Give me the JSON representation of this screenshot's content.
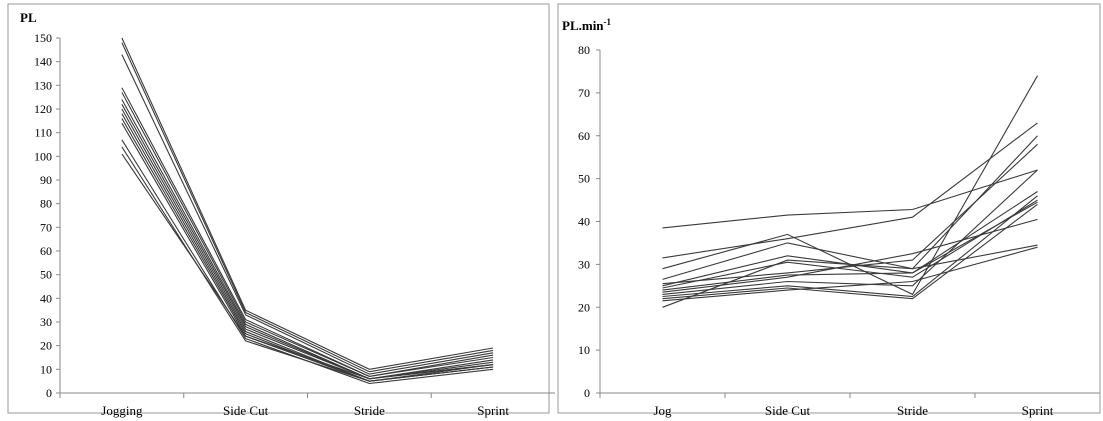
{
  "chart_data": [
    {
      "type": "line",
      "ylabel": "PL",
      "categories": [
        "Jogging",
        "Side Cut",
        "Stride",
        "Sprint"
      ],
      "ylim": [
        0,
        150
      ],
      "yticks": [
        0,
        10,
        20,
        30,
        40,
        50,
        60,
        70,
        80,
        90,
        100,
        110,
        120,
        130,
        140,
        150
      ],
      "grid": false,
      "series": [
        {
          "values": [
            150,
            35,
            10,
            19
          ]
        },
        {
          "values": [
            148,
            34,
            9,
            18
          ]
        },
        {
          "values": [
            143,
            33,
            8,
            17
          ]
        },
        {
          "values": [
            129,
            31,
            7,
            16
          ]
        },
        {
          "values": [
            127,
            30,
            7,
            15
          ]
        },
        {
          "values": [
            124,
            29,
            6,
            14
          ]
        },
        {
          "values": [
            122,
            28,
            6,
            13
          ]
        },
        {
          "values": [
            120,
            27,
            6,
            12
          ]
        },
        {
          "values": [
            118,
            26,
            5,
            12
          ]
        },
        {
          "values": [
            116,
            25,
            5,
            11
          ]
        },
        {
          "values": [
            114,
            24,
            5,
            11
          ]
        },
        {
          "values": [
            107,
            23,
            4,
            10
          ]
        },
        {
          "values": [
            104,
            22,
            5,
            11
          ]
        },
        {
          "values": [
            101,
            24,
            6,
            12
          ]
        }
      ]
    },
    {
      "type": "line",
      "ylabel": "PL.min",
      "ylabel_superscript": "-1",
      "categories": [
        "Jog",
        "Side Cut",
        "Stride",
        "Sprint"
      ],
      "ylim": [
        0,
        80
      ],
      "yticks": [
        0,
        10,
        20,
        30,
        40,
        50,
        60,
        70,
        80
      ],
      "grid": false,
      "series": [
        {
          "values": [
            38.5,
            41.5,
            42.8,
            52
          ]
        },
        {
          "values": [
            31.5,
            36,
            41,
            63
          ]
        },
        {
          "values": [
            29,
            37,
            23,
            74
          ]
        },
        {
          "values": [
            26.5,
            35,
            29,
            60
          ]
        },
        {
          "values": [
            25,
            32,
            28,
            47
          ]
        },
        {
          "values": [
            24.5,
            30.5,
            27,
            45
          ]
        },
        {
          "values": [
            24,
            27.5,
            28,
            44.5
          ]
        },
        {
          "values": [
            23.5,
            27,
            32.5,
            40.5
          ]
        },
        {
          "values": [
            23,
            26,
            25,
            52
          ]
        },
        {
          "values": [
            22.5,
            25,
            22.5,
            46
          ]
        },
        {
          "values": [
            22,
            24.5,
            22,
            44
          ]
        },
        {
          "values": [
            21.5,
            24,
            26,
            34
          ]
        },
        {
          "values": [
            20,
            31,
            29,
            34.5
          ]
        },
        {
          "values": [
            25.5,
            28,
            31,
            58
          ]
        }
      ]
    }
  ]
}
